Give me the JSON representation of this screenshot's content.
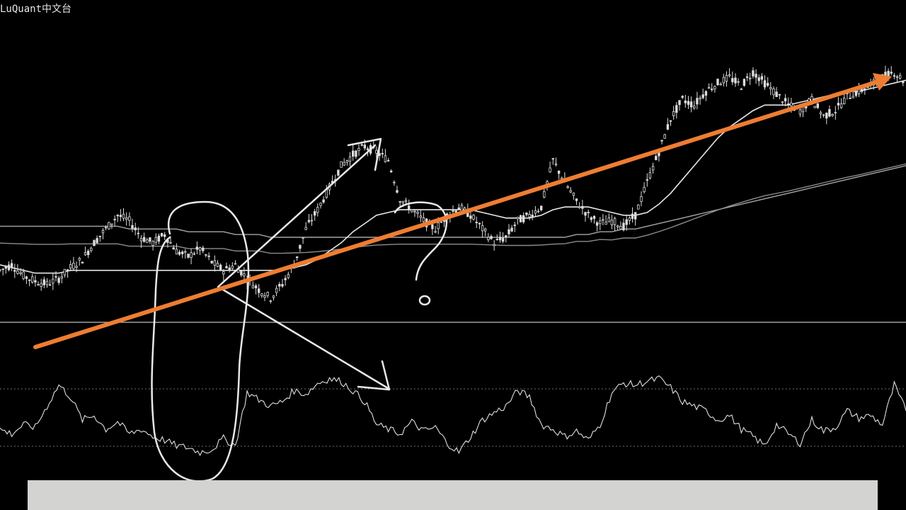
{
  "brand": {
    "text": "LuQuant中文台"
  },
  "colors": {
    "background": "#000000",
    "candle": "#dcdcdc",
    "ma_fast": "#e8e8e8",
    "ma_mid": "#8c8c8c",
    "ma_slow": "#a6a6a6",
    "oscillator": "#e0e0e0",
    "separator": "#bfbfbf",
    "trend_arrow": "#ee7d32",
    "annotation": "#e8e8e8",
    "caption_bar": "#d3d3d1"
  },
  "chart_data": [
    {
      "type": "candlestick",
      "panel": "price",
      "description_series": [
        {
          "key": "close",
          "values": [
            0.4,
            0.42,
            0.38,
            0.36,
            0.35,
            0.37,
            0.41,
            0.44,
            0.5,
            0.55,
            0.6,
            0.58,
            0.52,
            0.5,
            0.53,
            0.47,
            0.45,
            0.48,
            0.43,
            0.4,
            0.42,
            0.37,
            0.33,
            0.3,
            0.35,
            0.42,
            0.55,
            0.62,
            0.7,
            0.78,
            0.82,
            0.85,
            0.83,
            0.8,
            0.66,
            0.62,
            0.58,
            0.55,
            0.6,
            0.63,
            0.6,
            0.55,
            0.5,
            0.52,
            0.58,
            0.6,
            0.63,
            0.8,
            0.72,
            0.65,
            0.6,
            0.57,
            0.58,
            0.56,
            0.6,
            0.72,
            0.83,
            0.95,
            1.02,
            1.0,
            1.05,
            1.08,
            1.1,
            1.07,
            1.12,
            1.08,
            1.04,
            1.0,
            0.98,
            1.02,
            0.96,
            0.98,
            1.03,
            1.05,
            1.07,
            1.1,
            1.12,
            1.08
          ]
        },
        {
          "key": "ma_fast",
          "values": [
            0.42,
            0.41,
            0.4,
            0.39,
            0.39,
            0.39,
            0.4,
            0.4,
            0.4,
            0.4,
            0.4,
            0.4,
            0.4,
            0.4,
            0.4,
            0.4,
            0.4,
            0.4,
            0.4,
            0.4,
            0.4,
            0.4,
            0.4,
            0.4,
            0.4,
            0.41,
            0.42,
            0.44,
            0.47,
            0.5,
            0.54,
            0.57,
            0.6,
            0.61,
            0.62,
            0.62,
            0.62,
            0.62,
            0.62,
            0.62,
            0.62,
            0.61,
            0.6,
            0.59,
            0.59,
            0.59,
            0.6,
            0.62,
            0.63,
            0.63,
            0.63,
            0.62,
            0.61,
            0.6,
            0.6,
            0.61,
            0.64,
            0.68,
            0.73,
            0.78,
            0.83,
            0.88,
            0.92,
            0.95,
            0.98,
            1.0,
            1.0,
            1.0,
            1.01,
            1.02,
            1.03,
            1.04,
            1.05,
            1.05,
            1.06,
            1.07,
            1.08,
            1.09
          ]
        },
        {
          "key": "ma_slow",
          "values": [
            0.56,
            0.56,
            0.56,
            0.56,
            0.56,
            0.56,
            0.56,
            0.56,
            0.56,
            0.56,
            0.56,
            0.55,
            0.55,
            0.55,
            0.55,
            0.55,
            0.54,
            0.54,
            0.54,
            0.54,
            0.53,
            0.53,
            0.53,
            0.52,
            0.52,
            0.52,
            0.52,
            0.52,
            0.52,
            0.52,
            0.52,
            0.52,
            0.52,
            0.52,
            0.52,
            0.52,
            0.52,
            0.52,
            0.52,
            0.52,
            0.52,
            0.52,
            0.52,
            0.52,
            0.52,
            0.52,
            0.52,
            0.52,
            0.52,
            0.53,
            0.53,
            0.54,
            0.54,
            0.55,
            0.55,
            0.56,
            0.57,
            0.58,
            0.59,
            0.6,
            0.61,
            0.62,
            0.63,
            0.64,
            0.65,
            0.66,
            0.67,
            0.68,
            0.69,
            0.7,
            0.71,
            0.72,
            0.73,
            0.74,
            0.75,
            0.76,
            0.77,
            0.78
          ]
        }
      ]
    },
    {
      "type": "line",
      "panel": "oscillator",
      "series": [
        {
          "key": "osc",
          "values": [
            0.3,
            0.25,
            0.35,
            0.32,
            0.55,
            0.78,
            0.65,
            0.4,
            0.45,
            0.3,
            0.38,
            0.25,
            0.3,
            0.22,
            0.18,
            0.12,
            0.1,
            0.05,
            0.08,
            0.2,
            0.12,
            0.7,
            0.62,
            0.55,
            0.6,
            0.72,
            0.68,
            0.8,
            0.85,
            0.82,
            0.72,
            0.6,
            0.35,
            0.3,
            0.25,
            0.38,
            0.28,
            0.32,
            0.15,
            0.05,
            0.22,
            0.4,
            0.48,
            0.55,
            0.72,
            0.65,
            0.35,
            0.3,
            0.22,
            0.28,
            0.18,
            0.35,
            0.7,
            0.8,
            0.78,
            0.82,
            0.85,
            0.75,
            0.6,
            0.55,
            0.5,
            0.4,
            0.45,
            0.3,
            0.22,
            0.12,
            0.35,
            0.25,
            0.15,
            0.4,
            0.28,
            0.32,
            0.5,
            0.42,
            0.45,
            0.35,
            0.78,
            0.5
          ]
        }
      ]
    }
  ],
  "annotations": {
    "question_mark": "?"
  }
}
